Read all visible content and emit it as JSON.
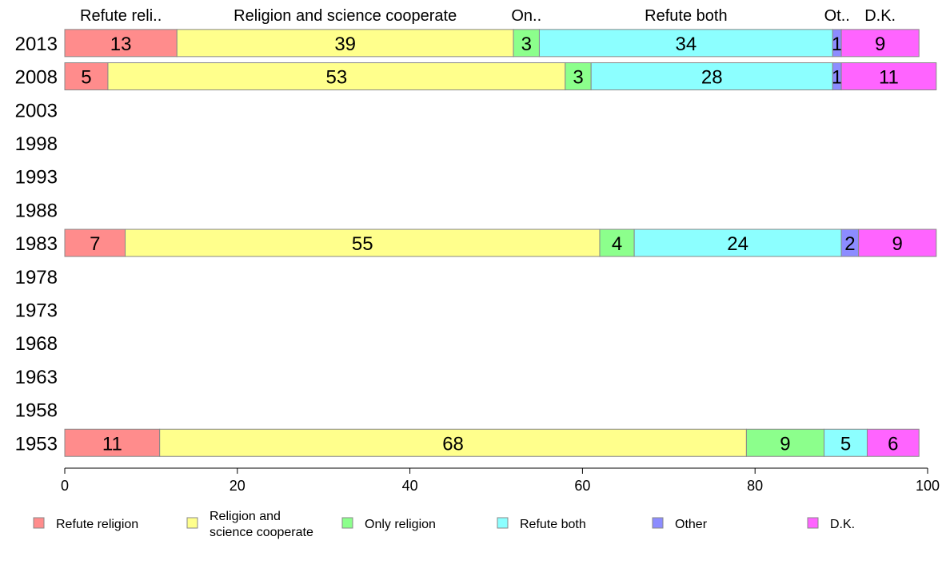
{
  "chart_data": {
    "type": "bar",
    "orientation": "horizontal",
    "stacked": true,
    "title": "",
    "xlabel": "",
    "ylabel": "",
    "xlim": [
      0,
      100
    ],
    "x_ticks": [
      "0",
      "20",
      "40",
      "60",
      "80",
      "100"
    ],
    "years": [
      "2013",
      "2008",
      "2003",
      "1998",
      "1993",
      "1988",
      "1983",
      "1978",
      "1973",
      "1968",
      "1963",
      "1958",
      "1953"
    ],
    "category_top_labels": [
      "Refute reli..",
      "Religion and science cooperate",
      "On..",
      "Refute both",
      "Ot..",
      "D.K."
    ],
    "series": [
      {
        "name": "Refute religion",
        "color": "#ff8c8c",
        "values": [
          13,
          5,
          null,
          null,
          null,
          null,
          7,
          null,
          null,
          null,
          null,
          null,
          11
        ]
      },
      {
        "name": "Religion and science cooperate",
        "color": "#ffff8c",
        "values": [
          39,
          53,
          null,
          null,
          null,
          null,
          55,
          null,
          null,
          null,
          null,
          null,
          68
        ]
      },
      {
        "name": "Only religion",
        "color": "#8cff8c",
        "values": [
          3,
          3,
          null,
          null,
          null,
          null,
          4,
          null,
          null,
          null,
          null,
          null,
          9
        ]
      },
      {
        "name": "Refute both",
        "color": "#8cffff",
        "values": [
          34,
          28,
          null,
          null,
          null,
          null,
          24,
          null,
          null,
          null,
          null,
          null,
          5
        ]
      },
      {
        "name": "Other",
        "color": "#8c8cff",
        "values": [
          1,
          1,
          null,
          null,
          null,
          null,
          2,
          null,
          null,
          null,
          null,
          null,
          0
        ]
      },
      {
        "name": "D.K.",
        "color": "#ff64ff",
        "values": [
          9,
          11,
          null,
          null,
          null,
          null,
          9,
          null,
          null,
          null,
          null,
          null,
          6
        ]
      }
    ],
    "legend": {
      "placement": "bottom",
      "entries": [
        {
          "lines": [
            "Refute religion"
          ],
          "color": "#ff8c8c"
        },
        {
          "lines": [
            "Religion and",
            "science cooperate"
          ],
          "color": "#ffff8c"
        },
        {
          "lines": [
            "Only religion"
          ],
          "color": "#8cff8c"
        },
        {
          "lines": [
            "Refute both"
          ],
          "color": "#8cffff"
        },
        {
          "lines": [
            "Other"
          ],
          "color": "#8c8cff"
        },
        {
          "lines": [
            "D.K."
          ],
          "color": "#ff64ff"
        }
      ]
    }
  }
}
